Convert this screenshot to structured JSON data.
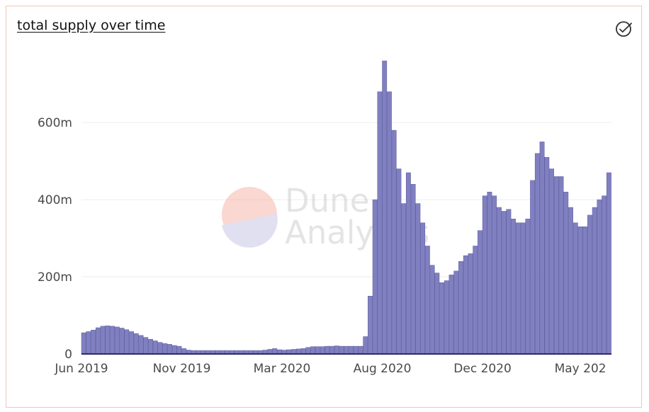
{
  "title": "total supply over time",
  "icons": {
    "check": "check-circle-icon"
  },
  "watermark": {
    "line1": "Dune",
    "line2": "Analytics"
  },
  "colors": {
    "bar": "#8080c0",
    "barStroke": "#5a5aa0",
    "baseline": "#2a2a6a",
    "grid": "#ececec",
    "accentBorder": "#f0c8b8"
  },
  "chart_data": {
    "type": "bar",
    "title": "total supply over time",
    "xlabel": "",
    "ylabel": "",
    "ylim": [
      0,
      760
    ],
    "yticks": [
      "0",
      "200m",
      "400m",
      "600m"
    ],
    "ytick_values": [
      0,
      200,
      400,
      600
    ],
    "xtick_labels": [
      "Jun 2019",
      "Nov 2019",
      "Mar 2020",
      "Aug 2020",
      "Dec 2020",
      "May 202"
    ],
    "xtick_indices": [
      0,
      21,
      42,
      63,
      84,
      105
    ],
    "grid": true,
    "unit": "m",
    "values": [
      55,
      58,
      62,
      68,
      72,
      73,
      72,
      70,
      67,
      63,
      58,
      53,
      48,
      43,
      38,
      34,
      30,
      27,
      25,
      22,
      20,
      14,
      10,
      9,
      9,
      9,
      9,
      9,
      9,
      9,
      9,
      9,
      9,
      9,
      9,
      9,
      9,
      9,
      10,
      12,
      14,
      11,
      10,
      11,
      12,
      13,
      14,
      17,
      19,
      19,
      19,
      20,
      20,
      21,
      20,
      20,
      20,
      20,
      20,
      45,
      150,
      400,
      680,
      760,
      680,
      580,
      480,
      390,
      470,
      440,
      390,
      340,
      280,
      230,
      210,
      185,
      190,
      205,
      215,
      240,
      255,
      260,
      280,
      320,
      410,
      420,
      410,
      380,
      370,
      375,
      350,
      340,
      340,
      350,
      450,
      520,
      550,
      510,
      480,
      460,
      460,
      420,
      380,
      340,
      330,
      330,
      360,
      380,
      400,
      410,
      470
    ]
  }
}
